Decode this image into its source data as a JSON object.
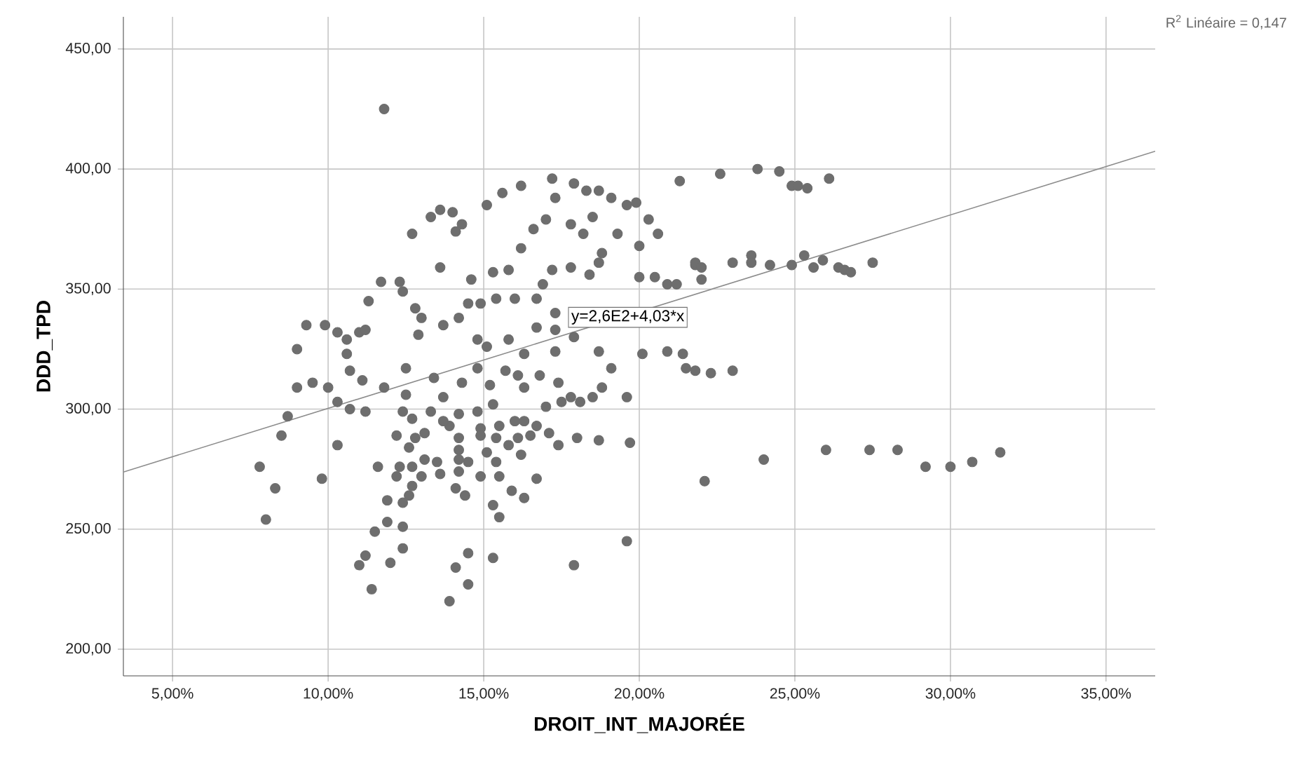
{
  "chart_data": {
    "type": "scatter",
    "xlabel": "DROIT_INT_MAJORÉE",
    "ylabel": "DDD_TPD",
    "xlim": [
      3.42,
      36.58
    ],
    "ylim": [
      188.9,
      463.4
    ],
    "xticks": [
      {
        "value": 5,
        "label": "5,00%"
      },
      {
        "value": 10,
        "label": "10,00%"
      },
      {
        "value": 15,
        "label": "15,00%"
      },
      {
        "value": 20,
        "label": "20,00%"
      },
      {
        "value": 25,
        "label": "25,00%"
      },
      {
        "value": 30,
        "label": "30,00%"
      },
      {
        "value": 35,
        "label": "35,00%"
      }
    ],
    "yticks": [
      {
        "value": 200,
        "label": "200,00"
      },
      {
        "value": 250,
        "label": "250,00"
      },
      {
        "value": 300,
        "label": "300,00"
      },
      {
        "value": 350,
        "label": "350,00"
      },
      {
        "value": 400,
        "label": "400,00"
      },
      {
        "value": 450,
        "label": "450,00"
      }
    ],
    "grid": true,
    "annotations": [
      "R$^{2}$ Linéaire = 0,147",
      "y=2,6E2+4,03*x"
    ],
    "series": [
      {
        "marker": "circle",
        "color": "#6e6e6e",
        "x": [
          11.8,
          17.2,
          17.9,
          18.3,
          18.7,
          19.1,
          21.3,
          16.2,
          15.6,
          15.1,
          13.3,
          13.6,
          14.0,
          14.3,
          14.1,
          12.7,
          13.6,
          14.6,
          15.3,
          15.8,
          16.2,
          16.6,
          17.3,
          17.0,
          17.8,
          18.2,
          18.5,
          19.6,
          19.9,
          20.3,
          20.6,
          20.0,
          19.3,
          18.8,
          17.8,
          17.2,
          18.4,
          18.7,
          20.0,
          20.5,
          20.9,
          21.2,
          21.8,
          11.7,
          12.3,
          12.4,
          11.3,
          12.8,
          13.0,
          9.3,
          9.9,
          10.3,
          10.6,
          11.0,
          11.2,
          9.0,
          12.9,
          13.7,
          14.2,
          14.5,
          14.9,
          15.4,
          16.0,
          16.7,
          16.9,
          17.3,
          16.7,
          17.3,
          17.9,
          17.3,
          18.7,
          20.1,
          20.9,
          21.4,
          14.8,
          15.1,
          15.8,
          16.3,
          10.6,
          10.7,
          11.1,
          9.0,
          9.5,
          10.0,
          10.3,
          10.7,
          11.2,
          8.7,
          8.5,
          7.8,
          8.3,
          8.0,
          9.8,
          10.3,
          11.6,
          11.8,
          12.5,
          12.4,
          12.7,
          12.2,
          12.8,
          12.6,
          13.1,
          12.3,
          12.2,
          12.7,
          13.1,
          13.5,
          13.6,
          13.0,
          12.7,
          12.6,
          12.4,
          11.9,
          11.9,
          11.5,
          12.4,
          12.4,
          11.2,
          11.0,
          12.0,
          11.4,
          13.9,
          14.1,
          14.5,
          14.5,
          15.3,
          17.9,
          19.6,
          15.3,
          15.5,
          14.1,
          14.4,
          14.2,
          14.5,
          14.9,
          14.2,
          14.2,
          15.1,
          15.4,
          15.5,
          15.9,
          16.3,
          16.7,
          15.4,
          15.8,
          16.2,
          16.1,
          16.5,
          17.1,
          17.4,
          18.0,
          18.7,
          19.7,
          14.9,
          14.9,
          14.2,
          13.9,
          14.2,
          14.8,
          15.5,
          16.0,
          16.3,
          16.7,
          17.0,
          17.5,
          17.8,
          18.1,
          18.5,
          18.8,
          19.6,
          15.3,
          15.2,
          16.3,
          17.4,
          16.8,
          16.1,
          15.7,
          13.7,
          13.3,
          13.7,
          14.3,
          13.4,
          14.8,
          12.5,
          19.1,
          21.5,
          21.8,
          22.6,
          23.8,
          24.5,
          24.9,
          25.1,
          25.4,
          26.1,
          21.8,
          22.0,
          22.0,
          23.0,
          23.6,
          23.6,
          24.2,
          24.9,
          25.3,
          25.6,
          25.9,
          26.4,
          26.6,
          26.8,
          27.5,
          22.3,
          23.0,
          22.1,
          24.0,
          26.0,
          27.4,
          28.3,
          29.2,
          30.0,
          30.7,
          31.6
        ],
        "values": [
          425,
          396,
          394,
          391,
          391,
          388,
          395,
          393,
          390,
          385,
          380,
          383,
          382,
          377,
          374,
          373,
          359,
          354,
          357,
          358,
          367,
          375,
          388,
          379,
          377,
          373,
          380,
          385,
          386,
          379,
          373,
          368,
          373,
          365,
          359,
          358,
          356,
          361,
          355,
          355,
          352,
          352,
          360,
          353,
          353,
          349,
          345,
          342,
          338,
          335,
          335,
          332,
          329,
          332,
          333,
          325,
          331,
          335,
          338,
          344,
          344,
          346,
          346,
          346,
          352,
          340,
          334,
          333,
          330,
          324,
          324,
          323,
          324,
          323,
          329,
          326,
          329,
          323,
          323,
          316,
          312,
          309,
          311,
          309,
          303,
          300,
          299,
          297,
          289,
          276,
          267,
          254,
          271,
          285,
          276,
          309,
          306,
          299,
          296,
          289,
          288,
          284,
          290,
          276,
          272,
          276,
          279,
          278,
          273,
          272,
          268,
          264,
          261,
          262,
          253,
          249,
          251,
          242,
          239,
          235,
          236,
          225,
          220,
          234,
          240,
          227,
          238,
          235,
          245,
          260,
          255,
          267,
          264,
          274,
          278,
          272,
          283,
          279,
          282,
          278,
          272,
          266,
          263,
          271,
          288,
          285,
          281,
          288,
          289,
          290,
          285,
          288,
          287,
          286,
          292,
          289,
          288,
          293,
          298,
          299,
          293,
          295,
          295,
          293,
          301,
          303,
          305,
          303,
          305,
          309,
          305,
          302,
          310,
          309,
          311,
          314,
          314,
          316,
          305,
          299,
          295,
          311,
          313,
          317,
          317,
          317,
          317,
          316,
          398,
          400,
          399,
          393,
          393,
          392,
          396,
          361,
          359,
          354,
          361,
          364,
          361,
          360,
          360,
          364,
          359,
          362,
          359,
          358,
          357,
          361,
          315,
          316,
          270,
          279,
          283,
          283,
          283,
          276,
          276,
          278,
          282
        ]
      },
      {
        "type": "line",
        "marker": "none",
        "color": "#8c8c8c",
        "x": [
          3.42,
          36.58
        ],
        "values": [
          273.8,
          407.4
        ]
      }
    ]
  }
}
